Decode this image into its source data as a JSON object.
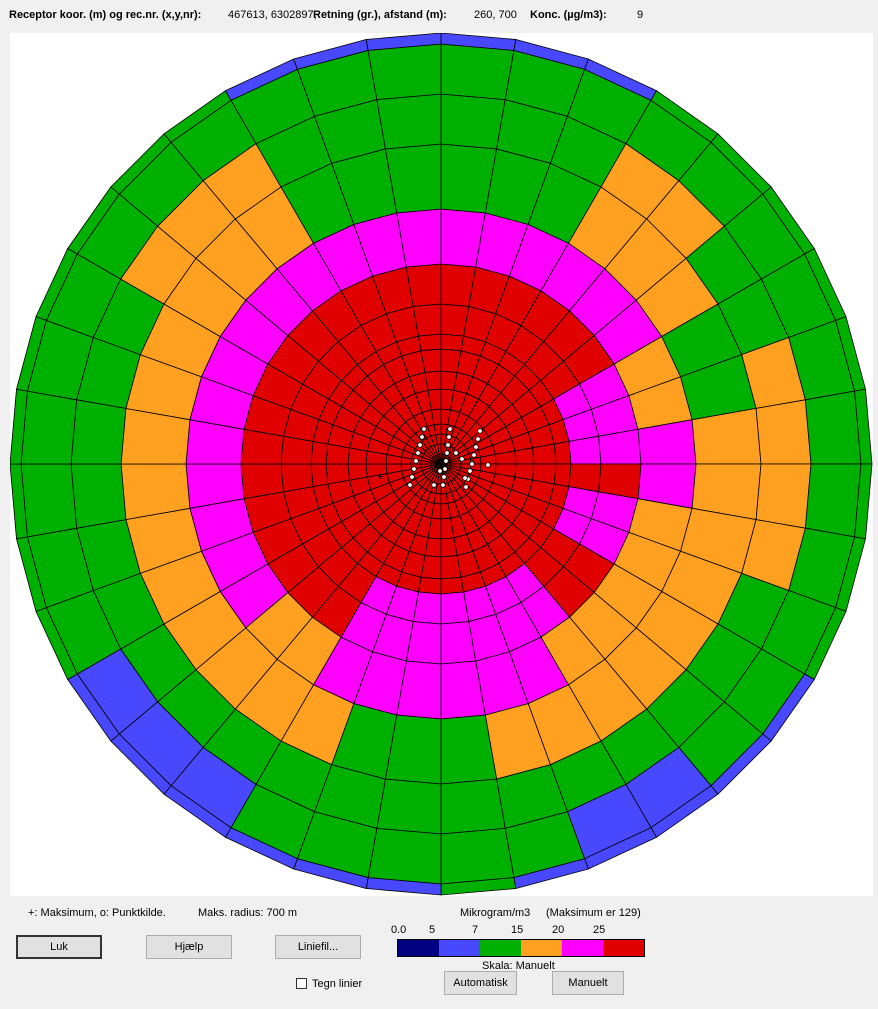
{
  "header": {
    "receptor_label": "Receptor koor. (m) og rec.nr. (x,y,nr):",
    "receptor_value": "467613, 6302897,",
    "direction_label": "Retning (gr.), afstand (m):",
    "direction_value": "260, 700",
    "conc_label": "Konc. (µg/m3):",
    "conc_value": "9"
  },
  "plot": {
    "sectors": 36,
    "rings": 14,
    "colors": {
      "blue": "#4848ff",
      "green": "#00b000",
      "orange": "#ffa020",
      "magenta": "#ff00ff",
      "red": "#e00000",
      "navy": "#000080",
      "grid": "#000000"
    },
    "symbols": {
      "max_marker": "+",
      "source_marker": "o"
    }
  },
  "footer": {
    "symbol_legend": "+:  Maksimum,  o:  Punktkilde.",
    "max_radius": "Maks. radius:  700 m",
    "unit": "Mikrogram/m3",
    "maximum": "(Maksimum er 129)",
    "scale_values": [
      "0.0",
      "5",
      "7",
      "15",
      "20",
      "25"
    ],
    "scale_colors": [
      "#000080",
      "#4848ff",
      "#00b000",
      "#ffa020",
      "#ff00ff",
      "#e00000"
    ],
    "scale_mode": "Skala:  Manuelt",
    "buttons": {
      "close": "Luk",
      "help": "Hjælp",
      "line_file": "Liniefil...",
      "auto": "Automatisk",
      "manual": "Manuelt"
    },
    "draw_lines_label": "Tegn linier"
  }
}
